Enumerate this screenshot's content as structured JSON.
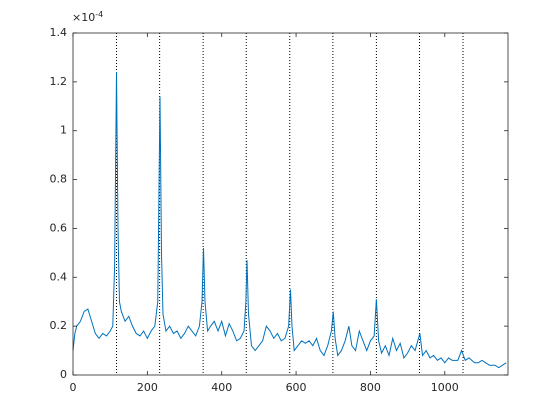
{
  "chart_data": {
    "type": "line",
    "axis_exponent": {
      "base": "×10",
      "power": "-4"
    },
    "x": [
      0,
      5,
      10,
      20,
      30,
      40,
      50,
      60,
      70,
      80,
      90,
      100,
      107,
      112,
      117,
      121,
      125,
      130,
      140,
      150,
      160,
      170,
      180,
      190,
      200,
      210,
      220,
      228,
      234,
      238,
      242,
      250,
      260,
      270,
      280,
      290,
      300,
      310,
      320,
      330,
      340,
      347,
      351,
      355,
      362,
      370,
      380,
      390,
      400,
      410,
      420,
      430,
      440,
      450,
      460,
      465,
      468,
      472,
      480,
      490,
      500,
      510,
      520,
      530,
      540,
      550,
      560,
      570,
      580,
      585,
      589,
      595,
      605,
      615,
      625,
      635,
      645,
      655,
      665,
      675,
      685,
      695,
      700,
      705,
      712,
      722,
      732,
      742,
      750,
      760,
      770,
      780,
      790,
      800,
      810,
      816,
      822,
      830,
      840,
      850,
      860,
      870,
      880,
      890,
      900,
      910,
      920,
      933,
      940,
      950,
      960,
      970,
      980,
      990,
      1000,
      1010,
      1020,
      1035,
      1045,
      1055,
      1065,
      1080,
      1090,
      1100,
      1110,
      1120,
      1135,
      1145,
      1165
    ],
    "series": [
      {
        "color": "#0072bd",
        "values": [
          0.1,
          0.17,
          0.2,
          0.22,
          0.26,
          0.27,
          0.22,
          0.17,
          0.15,
          0.17,
          0.16,
          0.18,
          0.2,
          0.45,
          1.24,
          0.6,
          0.3,
          0.26,
          0.22,
          0.24,
          0.2,
          0.17,
          0.16,
          0.18,
          0.15,
          0.18,
          0.2,
          0.3,
          1.14,
          0.5,
          0.25,
          0.18,
          0.2,
          0.17,
          0.18,
          0.15,
          0.17,
          0.2,
          0.18,
          0.16,
          0.2,
          0.3,
          0.52,
          0.3,
          0.18,
          0.2,
          0.22,
          0.18,
          0.22,
          0.16,
          0.21,
          0.18,
          0.14,
          0.15,
          0.18,
          0.3,
          0.47,
          0.25,
          0.12,
          0.1,
          0.12,
          0.14,
          0.2,
          0.18,
          0.15,
          0.17,
          0.14,
          0.15,
          0.2,
          0.35,
          0.2,
          0.1,
          0.12,
          0.14,
          0.13,
          0.14,
          0.12,
          0.15,
          0.1,
          0.08,
          0.12,
          0.18,
          0.26,
          0.15,
          0.08,
          0.1,
          0.14,
          0.2,
          0.12,
          0.1,
          0.18,
          0.14,
          0.1,
          0.14,
          0.16,
          0.31,
          0.14,
          0.09,
          0.12,
          0.08,
          0.15,
          0.1,
          0.13,
          0.07,
          0.09,
          0.12,
          0.1,
          0.17,
          0.08,
          0.1,
          0.07,
          0.08,
          0.06,
          0.07,
          0.05,
          0.07,
          0.06,
          0.06,
          0.1,
          0.06,
          0.07,
          0.05,
          0.05,
          0.06,
          0.05,
          0.04,
          0.04,
          0.03,
          0.05
        ]
      }
    ],
    "vlines": [
      117,
      233,
      350,
      466,
      583,
      699,
      816,
      932,
      1049
    ],
    "xlim": [
      0,
      1170
    ],
    "xticks": [
      0,
      200,
      400,
      600,
      800,
      1000
    ],
    "ylim": [
      0,
      1.4
    ],
    "yticks": [
      0,
      0.2,
      0.4,
      0.6,
      0.8,
      1,
      1.2,
      1.4
    ]
  }
}
